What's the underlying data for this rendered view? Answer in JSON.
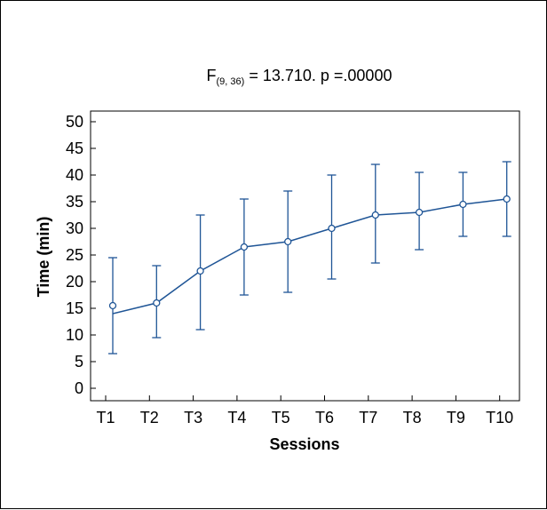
{
  "chart_data": {
    "type": "line",
    "title": {
      "stat_prefix": "F",
      "stat_subscript": "(9, 36)",
      "stat_rest": " = 13.710. p =.00000"
    },
    "xlabel": "Sessions",
    "ylabel": "Time (min)",
    "categories": [
      "T1",
      "T2",
      "T3",
      "T4",
      "T5",
      "T6",
      "T7",
      "T8",
      "T9",
      "T10"
    ],
    "ylim": [
      0,
      50
    ],
    "yticks": [
      "0",
      "5",
      "10",
      "15",
      "20",
      "25",
      "30",
      "35",
      "40",
      "45",
      "50"
    ],
    "series": [
      {
        "values": [
          14.0,
          16.0,
          22.0,
          26.5,
          27.5,
          30.0,
          32.5,
          33.0,
          34.5,
          35.5
        ],
        "markers": [
          15.5,
          16.0,
          22.0,
          26.5,
          27.5,
          30.0,
          32.5,
          33.0,
          34.5,
          35.5
        ],
        "error_low": [
          6.5,
          9.5,
          11.0,
          17.5,
          18.0,
          20.5,
          23.5,
          26.0,
          28.5,
          28.5
        ],
        "error_high": [
          24.5,
          23.0,
          32.5,
          35.5,
          37.0,
          40.0,
          42.0,
          40.5,
          40.5,
          42.5
        ]
      }
    ],
    "grid": false,
    "legend": "none",
    "colors": {
      "series": "#1f5596",
      "axis": "#000000",
      "marker_fill": "#ffffff"
    }
  }
}
